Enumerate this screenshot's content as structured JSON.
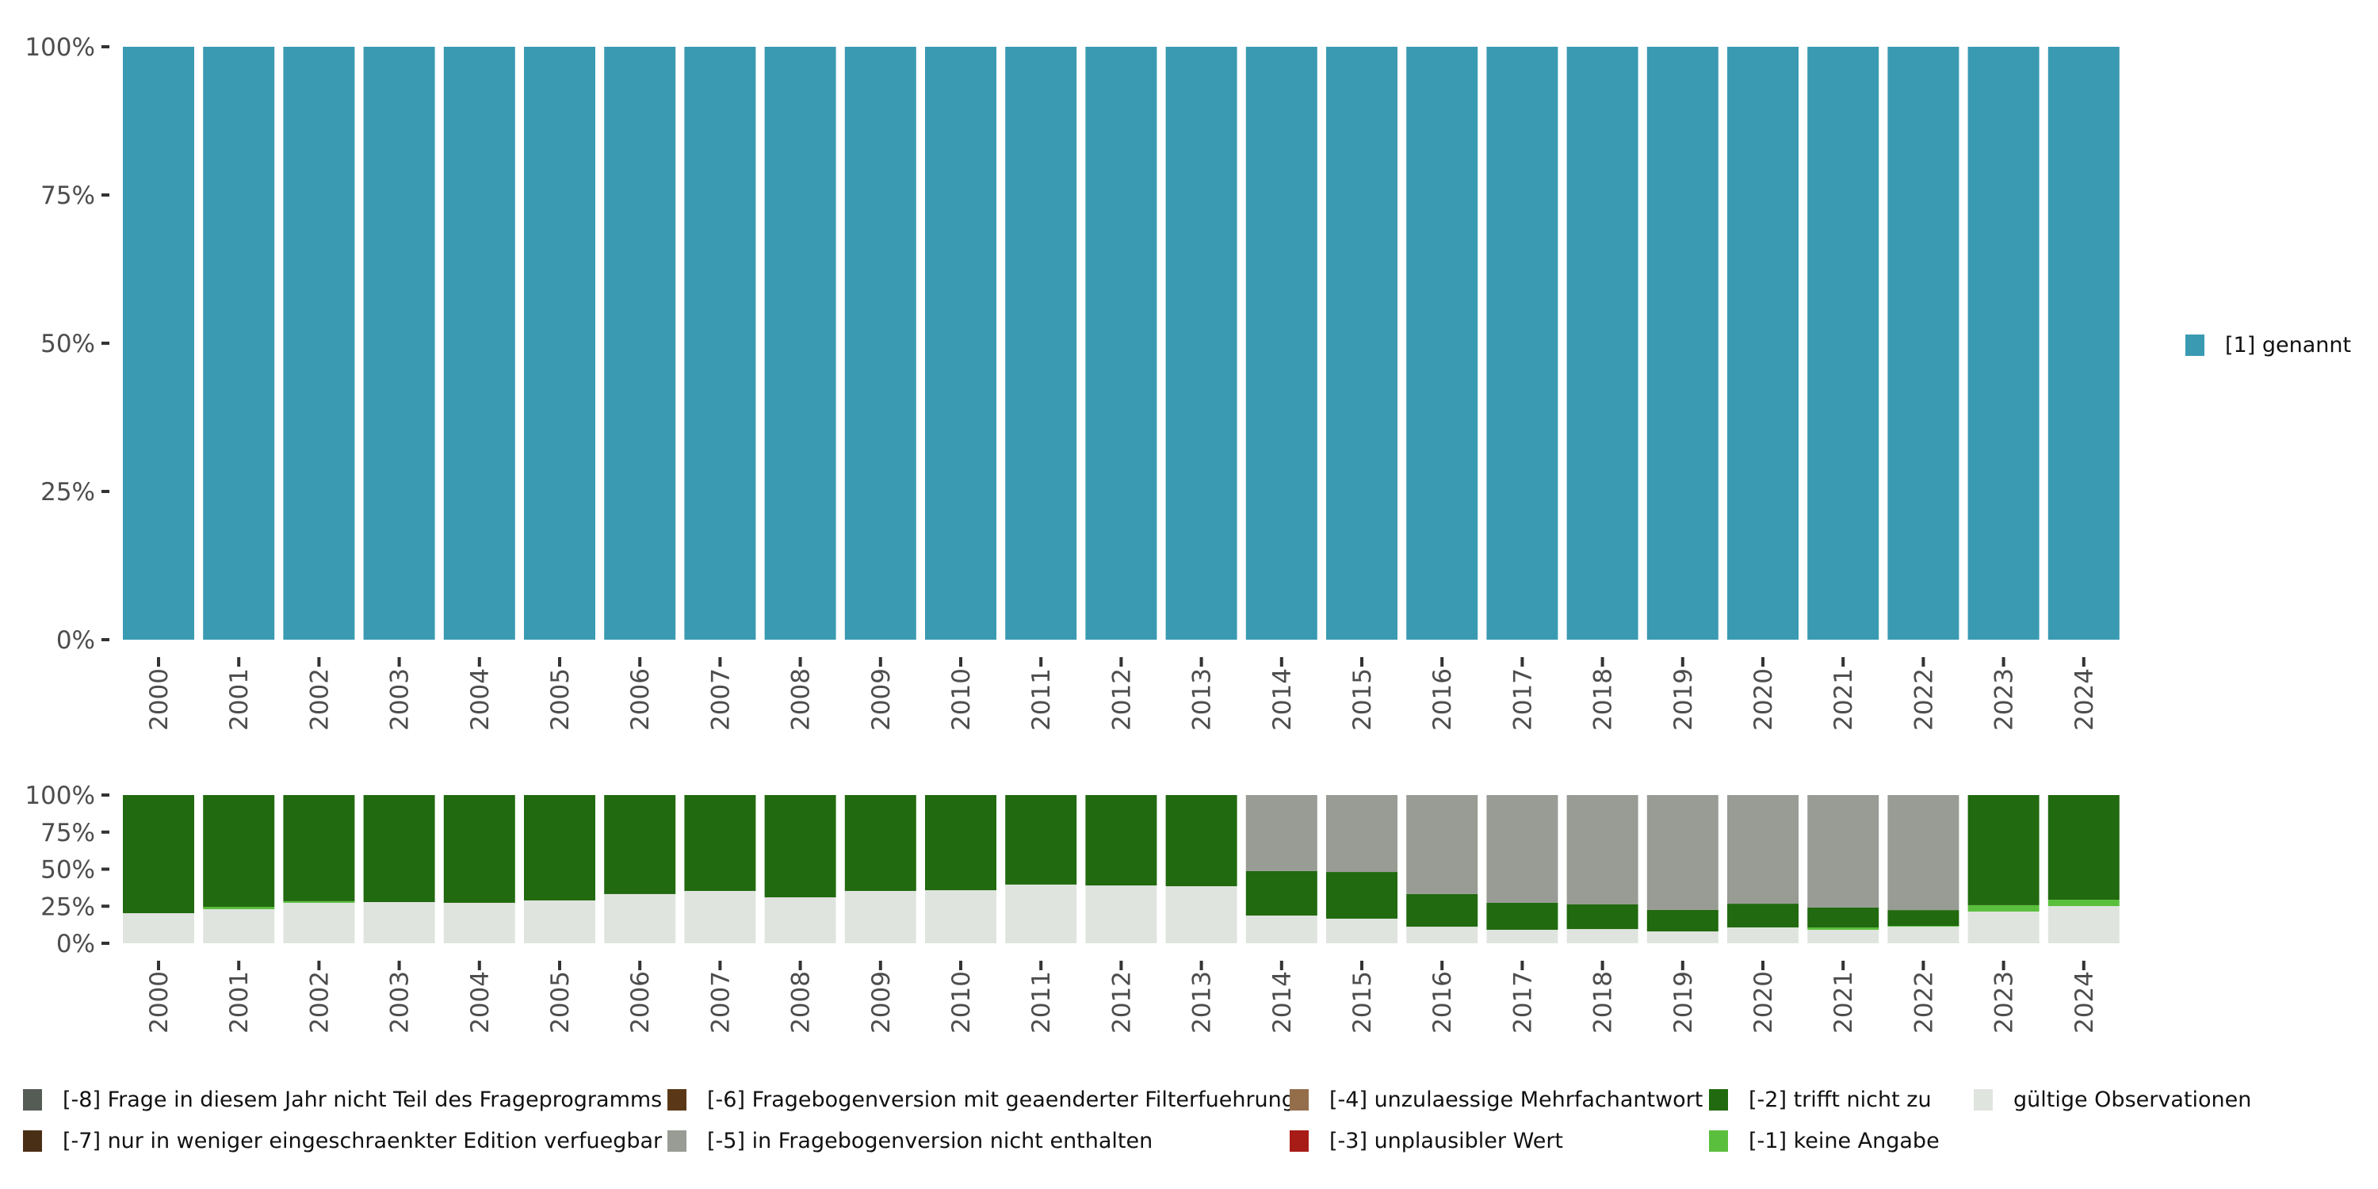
{
  "chart_data": [
    {
      "type": "bar",
      "stacked": true,
      "categories": [
        "2000",
        "2001",
        "2002",
        "2003",
        "2004",
        "2005",
        "2006",
        "2007",
        "2008",
        "2009",
        "2010",
        "2011",
        "2012",
        "2013",
        "2014",
        "2015",
        "2016",
        "2017",
        "2018",
        "2019",
        "2020",
        "2021",
        "2022",
        "2023",
        "2024"
      ],
      "series": [
        {
          "name": "[1] genannt",
          "color": "#3a9ab2",
          "values": [
            100,
            100,
            100,
            100,
            100,
            100,
            100,
            100,
            100,
            100,
            100,
            100,
            100,
            100,
            100,
            100,
            100,
            100,
            100,
            100,
            100,
            100,
            100,
            100,
            100
          ]
        }
      ],
      "yticks": [
        "0%",
        "25%",
        "50%",
        "75%",
        "100%"
      ],
      "ylim": [
        0,
        100
      ],
      "legend_position": "right"
    },
    {
      "type": "bar",
      "stacked": true,
      "categories": [
        "2000",
        "2001",
        "2002",
        "2003",
        "2004",
        "2005",
        "2006",
        "2007",
        "2008",
        "2009",
        "2010",
        "2011",
        "2012",
        "2013",
        "2014",
        "2015",
        "2016",
        "2017",
        "2018",
        "2019",
        "2020",
        "2021",
        "2022",
        "2023",
        "2024"
      ],
      "series": [
        {
          "name": "gültige Observationen",
          "color": "#e0e4df",
          "values": [
            20.3,
            23.0,
            27.3,
            27.8,
            27.3,
            28.9,
            33.2,
            35.3,
            31.0,
            35.3,
            35.8,
            39.6,
            39.0,
            38.5,
            18.7,
            16.6,
            11.2,
            9.1,
            9.6,
            8.0,
            10.7,
            9.1,
            11.2,
            21.4,
            25.1
          ]
        },
        {
          "name": "[-1] keine Angabe",
          "color": "#5bbf3e",
          "values": [
            0,
            1.6,
            1.1,
            0,
            0,
            0,
            0,
            0,
            0,
            0,
            0,
            0,
            0,
            0,
            0,
            0,
            0,
            0,
            0,
            0,
            0,
            1.6,
            0.5,
            4.3,
            4.3
          ]
        },
        {
          "name": "[-2] trifft nicht zu",
          "color": "#216a0f",
          "values": [
            79.7,
            75.4,
            71.6,
            72.2,
            72.7,
            71.1,
            66.8,
            64.7,
            69.0,
            64.7,
            64.2,
            60.4,
            61.0,
            61.5,
            30.0,
            31.5,
            22.0,
            18.2,
            16.6,
            14.5,
            16.0,
            13.4,
            10.7,
            74.3,
            70.6
          ]
        },
        {
          "name": "[-5] in Fragebogenversion nicht enthalten",
          "color": "#989c94",
          "values": [
            0,
            0,
            0,
            0,
            0,
            0,
            0,
            0,
            0,
            0,
            0,
            0,
            0,
            0,
            51.3,
            51.9,
            66.8,
            72.7,
            73.8,
            77.5,
            73.3,
            75.9,
            77.6,
            0,
            0
          ]
        }
      ],
      "yticks": [
        "0%",
        "25%",
        "50%",
        "75%",
        "100%"
      ],
      "ylim": [
        0,
        100
      ],
      "legend_position": "bottom"
    }
  ],
  "legend_top": [
    {
      "label": "[1] genannt",
      "color": "#3a9ab2"
    }
  ],
  "legend_bottom": [
    {
      "label": "[-8] Frage in diesem Jahr nicht Teil des Frageprogramms",
      "color": "#555c56"
    },
    {
      "label": "[-7] nur in weniger eingeschraenkter Edition verfuegbar",
      "color": "#4a2f17"
    },
    {
      "label": "[-6] Fragebogenversion mit geaenderter Filterfuehrung",
      "color": "#5a3817"
    },
    {
      "label": "[-5] in Fragebogenversion nicht enthalten",
      "color": "#989c94"
    },
    {
      "label": "[-4] unzulaessige Mehrfachantwort",
      "color": "#946e4b"
    },
    {
      "label": "[-3] unplausibler Wert",
      "color": "#a81c17"
    },
    {
      "label": "[-2] trifft nicht zu",
      "color": "#216a0f"
    },
    {
      "label": "[-1] keine Angabe",
      "color": "#5bbf3e"
    },
    {
      "label": "gültige Observationen",
      "color": "#e0e4df"
    }
  ]
}
